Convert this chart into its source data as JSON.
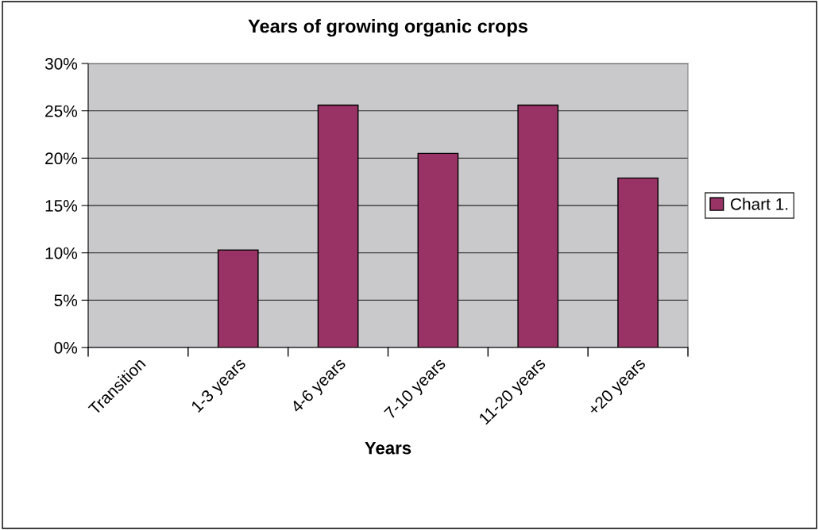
{
  "chart_data": {
    "type": "bar",
    "title": "Years of growing organic crops",
    "xlabel": "Years",
    "categories": [
      "Transition",
      "1-3 years",
      "4-6 years",
      "7-10 years",
      "11-20 years",
      "+20 years"
    ],
    "series": [
      {
        "name": "Chart 1.",
        "color": "#993366",
        "values": [
          0,
          10.3,
          25.6,
          20.5,
          25.6,
          17.9
        ]
      }
    ],
    "ylim": [
      0,
      30
    ],
    "yticks": [
      {
        "value": 0,
        "label": "0%"
      },
      {
        "value": 5,
        "label": "5%"
      },
      {
        "value": 10,
        "label": "10%"
      },
      {
        "value": 15,
        "label": "15%"
      },
      {
        "value": 20,
        "label": "20%"
      },
      {
        "value": 25,
        "label": "25%"
      },
      {
        "value": 30,
        "label": "30%"
      }
    ],
    "grid": "y",
    "legend": "right"
  }
}
